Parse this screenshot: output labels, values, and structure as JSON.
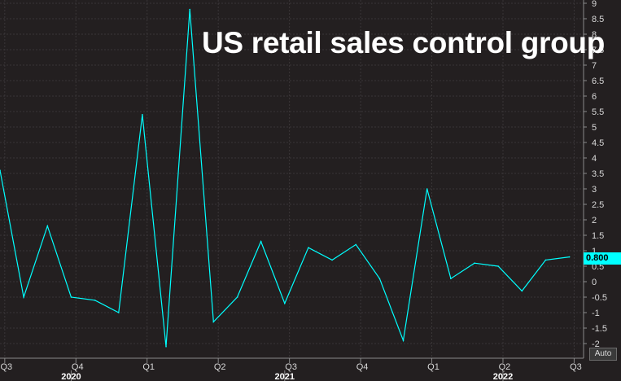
{
  "title": "US retail sales control group",
  "auto_label": "Auto",
  "last_value_label": "0.800",
  "colors": {
    "background": "#231f20",
    "grid": "#3a3638",
    "line": "#00ffff",
    "text": "#ffffff"
  },
  "chart_data": {
    "type": "line",
    "title": "US retail sales control group",
    "ylim": [
      -2.5,
      9.2
    ],
    "yticks": [
      9,
      8.5,
      8,
      7.5,
      7,
      6.5,
      6,
      5.5,
      5,
      4.5,
      4,
      3.5,
      3,
      2.5,
      2,
      1.5,
      1,
      0.5,
      0,
      -0.5,
      -1,
      -1.5,
      -2
    ],
    "x_tick_labels": [
      {
        "label": "Q3",
        "i": 0.2
      },
      {
        "label": "Q4",
        "i": 3.2
      },
      {
        "label": "Q1",
        "i": 6.2
      },
      {
        "label": "Q2",
        "i": 9.2
      },
      {
        "label": "Q3",
        "i": 12.2
      },
      {
        "label": "Q4",
        "i": 15.2
      },
      {
        "label": "Q1",
        "i": 18.2
      },
      {
        "label": "Q2",
        "i": 21.2
      },
      {
        "label": "Q3",
        "i": 24.2
      }
    ],
    "x_year_labels": [
      {
        "label": "2020",
        "i": 3
      },
      {
        "label": "2021",
        "i": 12
      },
      {
        "label": "2022",
        "i": 21.2
      }
    ],
    "series": [
      {
        "values": [
          3.6,
          -0.5,
          1.8,
          -0.5,
          -0.6,
          -1.0,
          5.4,
          -2.1,
          8.8,
          -1.3,
          -0.5,
          1.3,
          -0.7,
          1.1,
          0.7,
          1.2,
          0.1,
          -1.9,
          3.0,
          0.1,
          0.6,
          0.5,
          -0.3,
          0.7,
          0.8
        ]
      }
    ]
  }
}
